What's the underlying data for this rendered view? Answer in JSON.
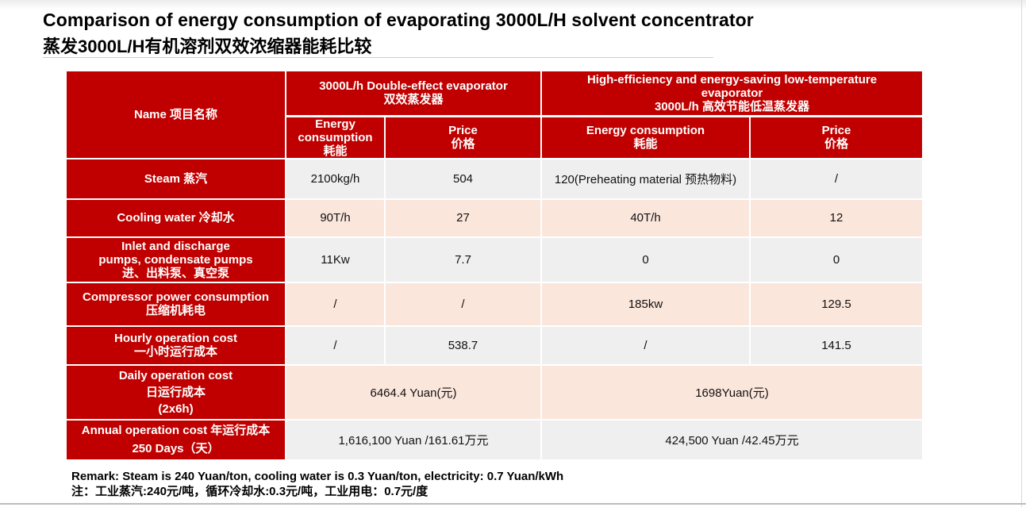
{
  "title": {
    "en": "Comparison of energy consumption of evaporating 3000L/H solvent concentrator",
    "cn": "蒸发3000L/H有机溶剂双效浓缩器能耗比较"
  },
  "table": {
    "header": {
      "name": "Name 项目名称",
      "group1": [
        "3000L/h Double-effect evaporator",
        "双效蒸发器"
      ],
      "group2": [
        "High-efficiency and energy-saving low-temperature",
        "evaporator",
        "3000L/h 高效节能低温蒸发器"
      ],
      "g1_energy": [
        "Energy",
        "consumption",
        "耗能"
      ],
      "g1_price": [
        "Price",
        "价格"
      ],
      "g2_energy": [
        "Energy consumption",
        "耗能"
      ],
      "g2_price": [
        "Price",
        "价格"
      ]
    },
    "rows": [
      {
        "label": [
          "Steam 蒸汽"
        ],
        "c1": "2100kg/h",
        "c2": "504",
        "c3": "120(Preheating material 预热物料)",
        "c4": "/"
      },
      {
        "label": [
          "Cooling water 冷却水"
        ],
        "c1": "90T/h",
        "c2": "27",
        "c3": "40T/h",
        "c4": "12"
      },
      {
        "label": [
          "Inlet and discharge",
          "pumps, condensate pumps",
          "进、出料泵、真空泵"
        ],
        "c1": "11Kw",
        "c2": "7.7",
        "c3": "0",
        "c4": "0"
      },
      {
        "label": [
          "Compressor power consumption",
          "压缩机耗电"
        ],
        "c1": "/",
        "c2": "/",
        "c3": "185kw",
        "c4": "129.5"
      },
      {
        "label": [
          "Hourly operation cost",
          "一小时运行成本"
        ],
        "c1": "/",
        "c2": "538.7",
        "c3": "/",
        "c4": "141.5"
      }
    ],
    "daily": {
      "label": [
        "Daily operation cost",
        "日运行成本",
        "(2x6h)"
      ],
      "v1": "6464.4 Yuan(元)",
      "v2": "1698Yuan(元)"
    },
    "annual": {
      "label": [
        "Annual operation cost  年运行成本",
        "250 Days（天）"
      ],
      "v1": "1,616,100 Yuan /161.61万元",
      "v2": "424,500 Yuan /42.45万元"
    }
  },
  "remark": {
    "en": "Remark:  Steam is 240 Yuan/ton, cooling water is 0.3 Yuan/ton, electricity: 0.7 Yuan/kWh",
    "cn": "注：工业蒸汽:240元/吨，循环冷却水:0.3元/吨，工业用电：0.7元/度"
  },
  "colors": {
    "header_red": "#c00000",
    "row_gray": "#efefef",
    "row_peach": "#fbe6dc"
  }
}
